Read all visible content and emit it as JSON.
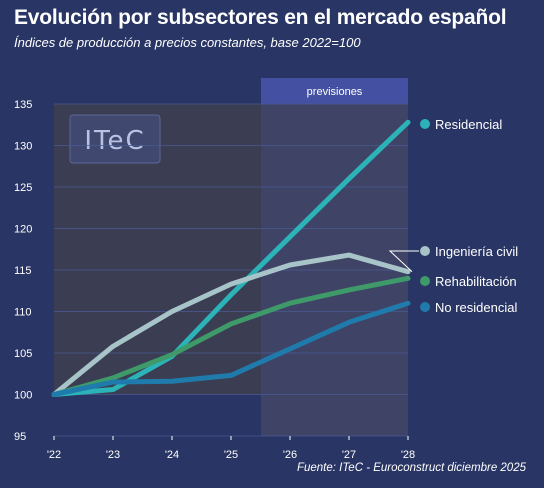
{
  "title": "Evolución por subsectores en el mercado español",
  "subtitle": "Índices de producción a precios constantes, base 2022=100",
  "source": "Fuente: ITeC - Euroconstruct diciembre 2025",
  "logo": "ITeC",
  "forecast_label": "previsiones",
  "colors": {
    "background": "#293564",
    "history_panel": "#3b3d52",
    "forecast_panel": "#3f4466",
    "forecast_header": "#4451a2"
  },
  "chart_data": {
    "type": "line",
    "categories": [
      "'22",
      "'23",
      "'24",
      "'25",
      "'26",
      "'27",
      "'28"
    ],
    "forecast_from": "'25",
    "ylim": [
      95,
      135
    ],
    "yticks": [
      95,
      100,
      105,
      110,
      115,
      120,
      125,
      130,
      135
    ],
    "grid": true,
    "series": [
      {
        "name": "Residencial",
        "color": "#2bb3b8",
        "values": [
          100,
          100.6,
          104.6,
          112,
          119,
          126,
          132.8
        ]
      },
      {
        "name": "Ingeniería civil",
        "color": "#a7c4c9",
        "values": [
          100,
          105.8,
          110,
          113.3,
          115.6,
          116.8,
          114.8
        ]
      },
      {
        "name": "Rehabilitación",
        "color": "#3f9a6a",
        "values": [
          100,
          102,
          104.8,
          108.5,
          111,
          112.6,
          114
        ]
      },
      {
        "name": "No residencial",
        "color": "#1f7bab",
        "values": [
          100,
          101.5,
          101.6,
          102.3,
          105.5,
          108.7,
          111
        ]
      }
    ]
  }
}
